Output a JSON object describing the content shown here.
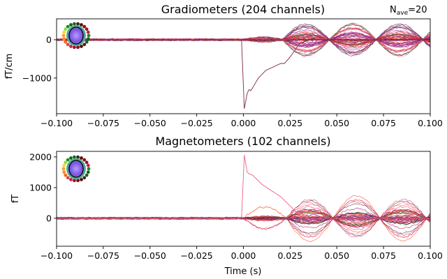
{
  "nave_label": {
    "prefix": "N",
    "sub": "ave",
    "suffix": "=20"
  },
  "chart_data": [
    {
      "type": "line",
      "title": "Gradiometers (204 channels)",
      "xlabel": "",
      "ylabel": "fT/cm",
      "xlim": [
        -0.1,
        0.1
      ],
      "ylim": [
        -1930,
        545
      ],
      "xticks": [
        "-0.100",
        "-0.075",
        "-0.050",
        "-0.025",
        "0.000",
        "0.025",
        "0.050",
        "0.075",
        "0.100"
      ],
      "yticks": [
        {
          "value": 0,
          "label": "0"
        },
        {
          "value": -1000,
          "label": "−1000"
        }
      ],
      "grid": false,
      "channel_count": 204,
      "spike_trace": {
        "color": "#7a2a4a",
        "x": [
          -0.1,
          -0.001,
          0.0005,
          0.002,
          0.003,
          0.004,
          0.008,
          0.012,
          0.02,
          0.022,
          0.025,
          0.03,
          0.035,
          0.1
        ],
        "y": [
          0,
          0,
          -1800,
          -1400,
          -1300,
          -1330,
          -1000,
          -800,
          -620,
          -620,
          -450,
          -100,
          0,
          0
        ]
      },
      "oscillation": {
        "onset": 0.021,
        "half_period": 0.025,
        "peak_amplitude": 430
      },
      "baseline_noise": 30
    },
    {
      "type": "line",
      "title": "Magnetometers (102 channels)",
      "xlabel": "Time (s)",
      "ylabel": "fT",
      "xlim": [
        -0.1,
        0.1
      ],
      "ylim": [
        -910,
        2180
      ],
      "xticks": [
        "-0.100",
        "-0.075",
        "-0.050",
        "-0.025",
        "0.000",
        "0.025",
        "0.050",
        "0.075",
        "0.100"
      ],
      "yticks": [
        {
          "value": 0,
          "label": "0"
        },
        {
          "value": 1000,
          "label": "1000"
        },
        {
          "value": 2000,
          "label": "2000"
        }
      ],
      "grid": false,
      "channel_count": 102,
      "spike_trace": {
        "color": "#f06080",
        "x": [
          -0.1,
          -0.001,
          0.0005,
          0.002,
          0.003,
          0.005,
          0.01,
          0.02,
          0.025,
          0.03,
          0.035,
          0.1
        ],
        "y": [
          0,
          0,
          2060,
          1500,
          1450,
          1400,
          1100,
          700,
          400,
          100,
          0,
          0
        ]
      },
      "oscillation": {
        "onset": 0.023,
        "half_period": 0.025,
        "peak_amplitude": 760
      },
      "baseline_noise": 40
    }
  ],
  "trace_colors": [
    "#e8332a",
    "#ff4422",
    "#d0306a",
    "#9a2a8a",
    "#6a2aa0",
    "#b02040",
    "#f07090",
    "#ff8060",
    "#2a7a3a",
    "#5a1a1a",
    "#e85aa0",
    "#c04080",
    "#ff6040",
    "#3a3aa0",
    "#8a1a3a"
  ]
}
